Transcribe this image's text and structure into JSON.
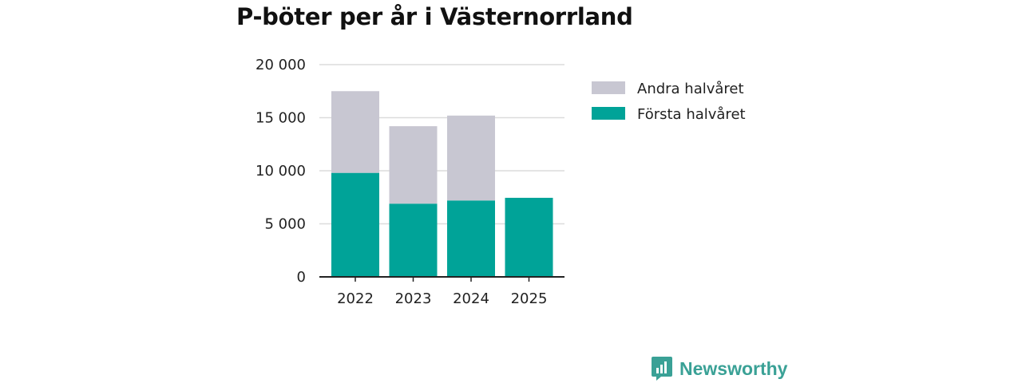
{
  "chart_data": {
    "type": "bar",
    "stacked": true,
    "title": "P-böter per år i Västernorrland",
    "categories": [
      "2022",
      "2023",
      "2024",
      "2025"
    ],
    "series": [
      {
        "name": "Första halvåret",
        "color": "#00a398",
        "values": [
          9800,
          6900,
          7200,
          7450
        ]
      },
      {
        "name": "Andra halvåret",
        "color": "#c8c7d2",
        "values": [
          7700,
          7300,
          8000,
          0
        ]
      }
    ],
    "y_ticks": [
      0,
      5000,
      10000,
      15000,
      20000
    ],
    "y_tick_labels": [
      "0",
      "5 000",
      "10 000",
      "15 000",
      "20 000"
    ],
    "ylim": [
      0,
      20000
    ],
    "xlabel": "",
    "ylabel": "",
    "grid": true,
    "legend_position": "right"
  },
  "legend": [
    {
      "label": "Andra halvåret",
      "color": "#c8c7d2"
    },
    {
      "label": "Första halvåret",
      "color": "#00a398"
    }
  ],
  "brand": {
    "name": "Newsworthy",
    "color": "#3aa196"
  }
}
